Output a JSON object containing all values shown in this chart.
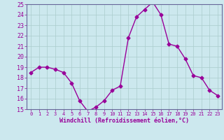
{
  "x": [
    0,
    1,
    2,
    3,
    4,
    5,
    6,
    7,
    8,
    9,
    10,
    11,
    12,
    13,
    14,
    15,
    16,
    17,
    18,
    19,
    20,
    21,
    22,
    23
  ],
  "y": [
    18.5,
    19.0,
    19.0,
    18.8,
    18.5,
    17.5,
    15.8,
    14.8,
    15.2,
    15.8,
    16.8,
    17.2,
    21.8,
    23.8,
    24.5,
    25.2,
    24.0,
    21.2,
    21.0,
    19.8,
    18.2,
    18.0,
    16.8,
    16.3
  ],
  "ylim": [
    15,
    25
  ],
  "yticks": [
    15,
    16,
    17,
    18,
    19,
    20,
    21,
    22,
    23,
    24,
    25
  ],
  "xticks": [
    0,
    1,
    2,
    3,
    4,
    5,
    6,
    7,
    8,
    9,
    10,
    11,
    12,
    13,
    14,
    15,
    16,
    17,
    18,
    19,
    20,
    21,
    22,
    23
  ],
  "xlabel": "Windchill (Refroidissement éolien,°C)",
  "line_color": "#990099",
  "marker": "D",
  "marker_size": 2.5,
  "bg_color": "#cce8ee",
  "grid_color": "#aacccc",
  "axis_color": "#666699",
  "tick_fontsize": 5.0,
  "xlabel_fontsize": 6.0
}
